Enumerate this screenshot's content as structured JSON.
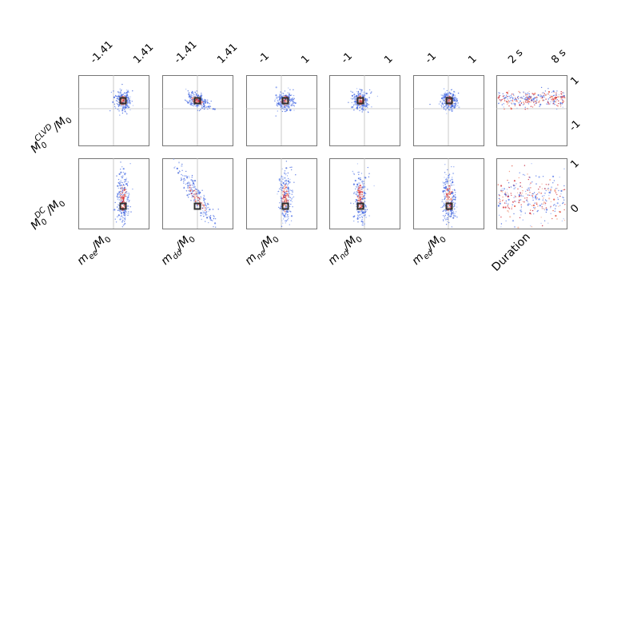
{
  "chart_data": {
    "type": "scatter",
    "description_colors": {
      "low": "#3b5ee0",
      "mid": "#dddddd",
      "high": "#c0102a",
      "marker": "#2f2f2f"
    },
    "columns": [
      {
        "xlabel_tex": [
          "m",
          "ee",
          "/M",
          "0"
        ],
        "top_ticks": [
          "-1.41",
          "1.41"
        ],
        "xlim": [
          -1.41,
          1.41
        ]
      },
      {
        "xlabel_tex": [
          "m",
          "dd",
          "/M",
          "0"
        ],
        "top_ticks": [
          "-1.41",
          "1.41"
        ],
        "xlim": [
          -1.41,
          1.41
        ]
      },
      {
        "xlabel_tex": [
          "m",
          "ne",
          "/M",
          "0"
        ],
        "top_ticks": [
          "-1",
          "1"
        ],
        "xlim": [
          -1,
          1
        ]
      },
      {
        "xlabel_tex": [
          "m",
          "nd",
          "/M",
          "0"
        ],
        "top_ticks": [
          "-1",
          "1"
        ],
        "xlim": [
          -1,
          1
        ]
      },
      {
        "xlabel_tex": [
          "m",
          "ed",
          "/M",
          "0"
        ],
        "top_ticks": [
          "-1",
          "1"
        ],
        "xlim": [
          -1,
          1
        ]
      },
      {
        "xlabel_plain": "Duration",
        "top_ticks": [
          "2 s",
          "8 s"
        ],
        "xlim": [
          2,
          8
        ]
      }
    ],
    "rows": [
      {
        "ylabel_main": "M",
        "ylabel_sup": "CLVD",
        "ylabel_sub": "0",
        "ylabel_tail": "/M",
        "ylabel_tail_sub": "0",
        "right_ticks": [
          "1",
          "-1"
        ],
        "ylim": [
          -1,
          1
        ]
      },
      {
        "ylabel_main": "M",
        "ylabel_sup": "DC",
        "ylabel_sub": "0",
        "ylabel_tail": "/M",
        "ylabel_tail_sub": "0",
        "right_ticks": [
          "1",
          "0"
        ],
        "ylim": [
          0,
          1
        ]
      }
    ],
    "markers": [
      [
        {
          "x": 0.3,
          "y": 0.25
        },
        {
          "x": 0.0,
          "y": 0.25
        },
        {
          "x": 0.1,
          "y": 0.25
        },
        {
          "x": -0.2,
          "y": 0.25
        },
        {
          "x": 0.0,
          "y": 0.25
        },
        null
      ],
      [
        {
          "x": 0.3,
          "y": 0.31
        },
        {
          "x": 0.0,
          "y": 0.31
        },
        {
          "x": 0.1,
          "y": 0.31
        },
        {
          "x": -0.2,
          "y": 0.31
        },
        {
          "x": 0.0,
          "y": 0.31
        },
        null
      ]
    ],
    "grid": "crosshair at origin",
    "legend": "none"
  }
}
